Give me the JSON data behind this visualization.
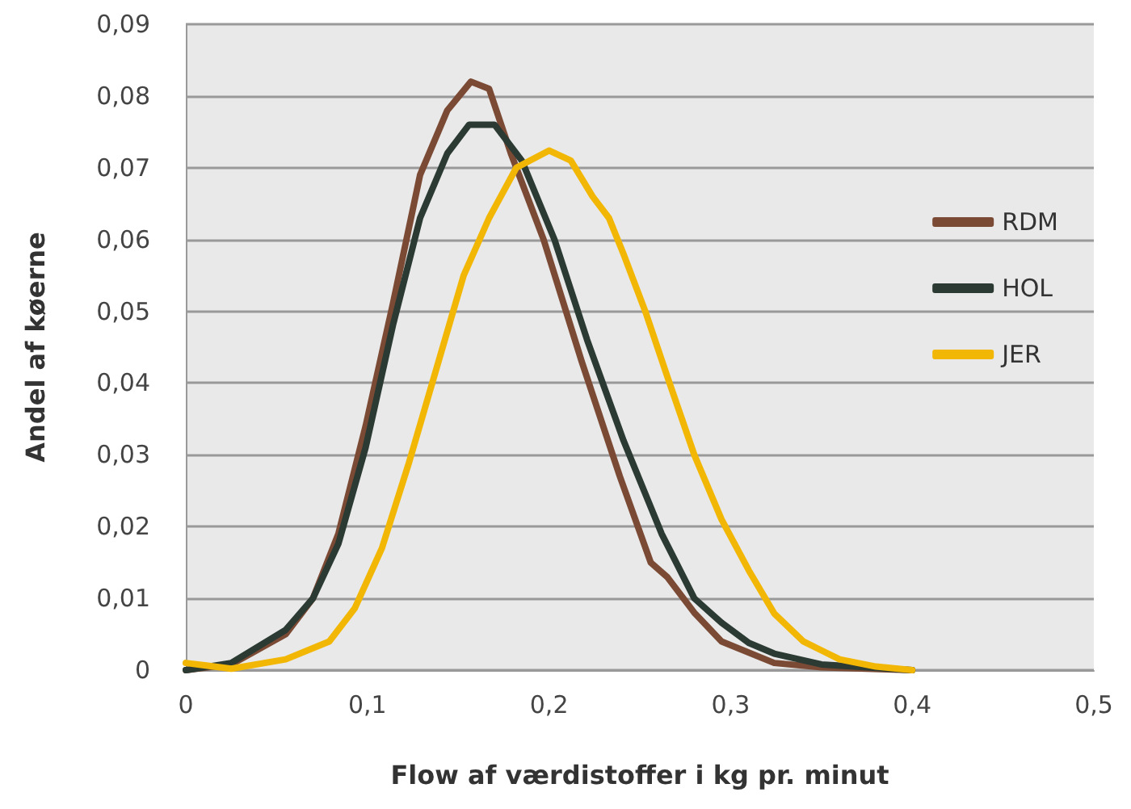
{
  "chart_data": {
    "type": "line",
    "xlabel": "Flow af værdistoffer i kg pr. minut",
    "ylabel": "Andel af køerne",
    "xlim": [
      0,
      0.5
    ],
    "xticks": [
      0,
      {
        "value": 0.1,
        "label": "0,1"
      },
      {
        "value": 0.2,
        "label": "0,2"
      },
      {
        "value": 0.3,
        "label": "0,3"
      },
      {
        "value": 0.4,
        "label": "0,4"
      },
      {
        "value": 0.5,
        "label": "0,5"
      }
    ],
    "ylim": [
      0,
      0.09
    ],
    "yticks": [
      0,
      {
        "value": 0.01,
        "label": "0,01"
      },
      {
        "value": 0.02,
        "label": "0,02"
      },
      {
        "value": 0.03,
        "label": "0,03"
      },
      {
        "value": 0.04,
        "label": "0,04"
      },
      {
        "value": 0.05,
        "label": "0,05"
      },
      {
        "value": 0.06,
        "label": "0,06"
      },
      {
        "value": 0.07,
        "label": "0,07"
      },
      {
        "value": 0.08,
        "label": "0,08"
      },
      {
        "value": 0.09,
        "label": "0,09"
      }
    ],
    "grid": "y",
    "legend": "right",
    "marker": "none",
    "line_style": "solid",
    "series": [
      {
        "name": "RDM",
        "color": "#7b4a35",
        "x": [
          0,
          0.025,
          0.055,
          0.07,
          0.084,
          0.099,
          0.114,
          0.129,
          0.144,
          0.157,
          0.167,
          0.179,
          0.197,
          0.218,
          0.239,
          0.256,
          0.265,
          0.28,
          0.295,
          0.324,
          0.35,
          0.4
        ],
        "values": [
          0,
          0.0008,
          0.005,
          0.01,
          0.019,
          0.034,
          0.051,
          0.069,
          0.078,
          0.082,
          0.081,
          0.072,
          0.06,
          0.043,
          0.027,
          0.015,
          0.013,
          0.008,
          0.004,
          0.001,
          0.0004,
          0
        ]
      },
      {
        "name": "HOL",
        "color": "#2b3a33",
        "x": [
          0,
          0.025,
          0.055,
          0.07,
          0.084,
          0.099,
          0.114,
          0.129,
          0.144,
          0.156,
          0.17,
          0.185,
          0.203,
          0.221,
          0.241,
          0.262,
          0.28,
          0.295,
          0.31,
          0.324,
          0.35,
          0.4
        ],
        "values": [
          0,
          0.001,
          0.0056,
          0.01,
          0.0176,
          0.031,
          0.048,
          0.063,
          0.072,
          0.076,
          0.076,
          0.071,
          0.06,
          0.046,
          0.032,
          0.019,
          0.01,
          0.0066,
          0.0038,
          0.0023,
          0.0008,
          0
        ]
      },
      {
        "name": "JER",
        "color": "#f2b705",
        "x": [
          0,
          0.025,
          0.055,
          0.079,
          0.093,
          0.108,
          0.123,
          0.138,
          0.153,
          0.167,
          0.182,
          0.2,
          0.212,
          0.224,
          0.233,
          0.241,
          0.253,
          0.265,
          0.28,
          0.295,
          0.31,
          0.324,
          0.34,
          0.36,
          0.38,
          0.4
        ],
        "values": [
          0.001,
          0.0002,
          0.0015,
          0.004,
          0.0086,
          0.017,
          0.029,
          0.042,
          0.055,
          0.063,
          0.07,
          0.0724,
          0.071,
          0.066,
          0.063,
          0.058,
          0.05,
          0.041,
          0.03,
          0.021,
          0.0139,
          0.0079,
          0.004,
          0.0015,
          0.0005,
          0
        ]
      }
    ]
  }
}
